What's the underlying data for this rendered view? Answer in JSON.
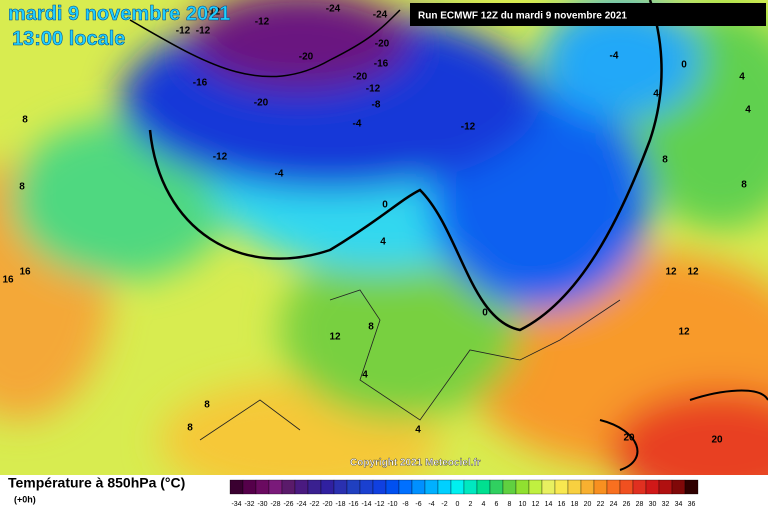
{
  "header": {
    "date": "mardi 9 novembre 2021",
    "time": "13:00 locale",
    "run": "Run ECMWF 12Z du mardi 9 novembre 2021"
  },
  "map": {
    "contour_labels": [
      "-12",
      "-24",
      "-24",
      "-12",
      "-12",
      "-12",
      "-20",
      "-20",
      "-16",
      "-20",
      "-12",
      "-8",
      "-16",
      "-20",
      "-4",
      "0",
      "4",
      "4",
      "4",
      "8",
      "-12",
      "-4",
      "-12",
      "-4",
      "0",
      "4",
      "8",
      "8",
      "16",
      "16",
      "12",
      "12",
      "12",
      "8",
      "12",
      "4",
      "0",
      "8",
      "8",
      "4",
      "20",
      "20",
      "8"
    ]
  },
  "copyright": "Copyright 2021 Meteociel.fr",
  "legend": {
    "title": "Température à 850hPa (°C)",
    "lead": "(+0h)",
    "scale": [
      -34,
      -32,
      -30,
      -28,
      -26,
      -24,
      -22,
      -20,
      -18,
      -16,
      -14,
      -12,
      -10,
      -8,
      -6,
      -4,
      -2,
      0,
      2,
      4,
      6,
      8,
      10,
      12,
      14,
      16,
      18,
      20,
      22,
      24,
      26,
      28,
      30,
      32,
      34,
      36
    ],
    "colors": [
      "#3a0030",
      "#55004a",
      "#6a0a60",
      "#7a1a7a",
      "#5a1a6a",
      "#4a1a80",
      "#3a2090",
      "#3020a0",
      "#2a30b0",
      "#2040c0",
      "#1a40d0",
      "#1040e0",
      "#0050f0",
      "#0070ff",
      "#0090ff",
      "#00b0ff",
      "#00d0ff",
      "#00f0f0",
      "#00e8c0",
      "#00e090",
      "#30d060",
      "#60d040",
      "#90e030",
      "#c0f040",
      "#e8f060",
      "#f8e850",
      "#f8d040",
      "#f8b030",
      "#f89020",
      "#f87020",
      "#f05020",
      "#e03020",
      "#d01818",
      "#b01010",
      "#800808",
      "#300000"
    ]
  }
}
